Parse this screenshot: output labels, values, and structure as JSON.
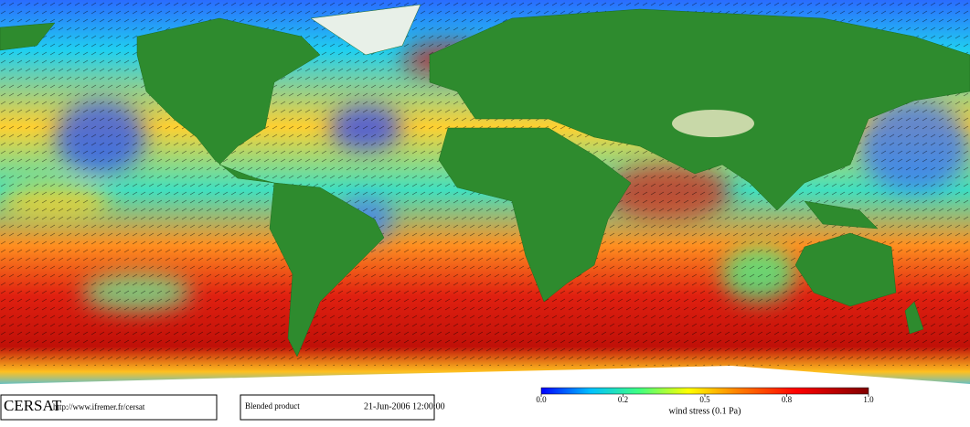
{
  "header": {
    "logo": "CERSAT",
    "url": "http://www.ifremer.fr/cersat"
  },
  "product": {
    "name": "Blended product",
    "date": "21-Jun-2006 12:00:00"
  },
  "colorbar": {
    "label": "wind stress (0.1 Pa)",
    "ticks": [
      {
        "value": 0,
        "label": "0.0"
      },
      0.2,
      0.5,
      0.8,
      {
        "value": 1,
        "label": "1.0"
      }
    ]
  }
}
